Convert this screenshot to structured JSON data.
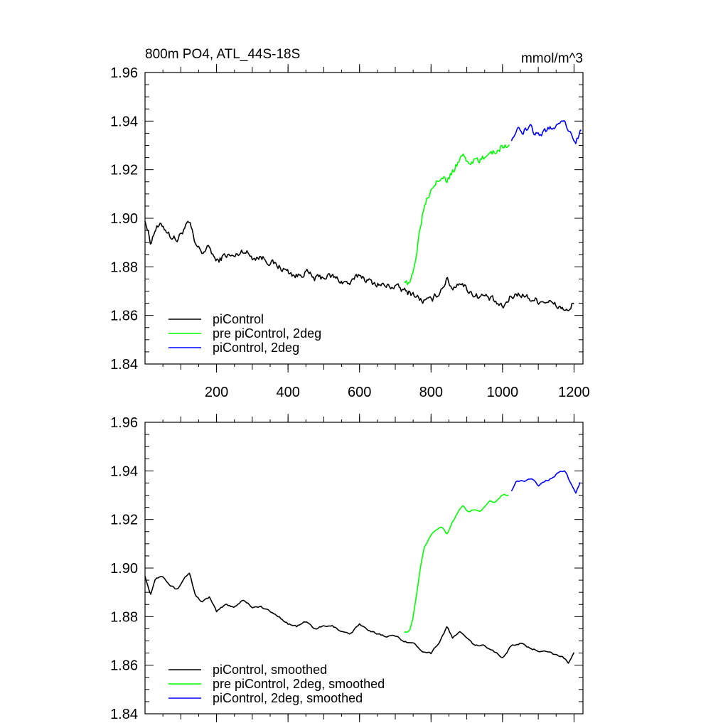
{
  "chart_data": [
    {
      "type": "line",
      "title": "800m PO4, ATL_44S-18S",
      "units": "mmol/m^3",
      "ylim": [
        1.84,
        1.96
      ],
      "yticks": [
        "1.84",
        "1.86",
        "1.88",
        "1.90",
        "1.92",
        "1.94",
        "1.96"
      ],
      "xlim": [
        0,
        1225
      ],
      "xticks": [
        "200",
        "400",
        "600",
        "800",
        "1000",
        "1200"
      ],
      "legend_position": "bottom-left",
      "series": [
        {
          "name": "piControl",
          "color": "#000000",
          "style": "noisy",
          "points": [
            [
              0,
              1.9
            ],
            [
              15,
              1.89
            ],
            [
              30,
              1.896
            ],
            [
              50,
              1.897
            ],
            [
              70,
              1.893
            ],
            [
              90,
              1.891
            ],
            [
              110,
              1.896
            ],
            [
              125,
              1.898
            ],
            [
              140,
              1.889
            ],
            [
              160,
              1.886
            ],
            [
              180,
              1.888
            ],
            [
              200,
              1.882
            ],
            [
              225,
              1.885
            ],
            [
              250,
              1.884
            ],
            [
              275,
              1.887
            ],
            [
              300,
              1.884
            ],
            [
              325,
              1.884
            ],
            [
              350,
              1.882
            ],
            [
              375,
              1.88
            ],
            [
              400,
              1.878
            ],
            [
              425,
              1.876
            ],
            [
              450,
              1.878
            ],
            [
              475,
              1.875
            ],
            [
              500,
              1.876
            ],
            [
              525,
              1.876
            ],
            [
              550,
              1.874
            ],
            [
              575,
              1.873
            ],
            [
              600,
              1.877
            ],
            [
              625,
              1.874
            ],
            [
              650,
              1.873
            ],
            [
              675,
              1.872
            ],
            [
              700,
              1.872
            ],
            [
              725,
              1.87
            ],
            [
              750,
              1.869
            ],
            [
              775,
              1.866
            ],
            [
              800,
              1.866
            ],
            [
              825,
              1.87
            ],
            [
              845,
              1.875
            ],
            [
              860,
              1.871
            ],
            [
              880,
              1.874
            ],
            [
              900,
              1.871
            ],
            [
              925,
              1.868
            ],
            [
              950,
              1.868
            ],
            [
              975,
              1.866
            ],
            [
              1000,
              1.863
            ],
            [
              1025,
              1.868
            ],
            [
              1050,
              1.869
            ],
            [
              1075,
              1.867
            ],
            [
              1100,
              1.866
            ],
            [
              1125,
              1.866
            ],
            [
              1150,
              1.864
            ],
            [
              1170,
              1.863
            ],
            [
              1185,
              1.861
            ],
            [
              1200,
              1.866
            ]
          ]
        },
        {
          "name": "pre piControl, 2deg",
          "color": "#00ff00",
          "style": "noisy",
          "points": [
            [
              725,
              1.875
            ],
            [
              740,
              1.872
            ],
            [
              750,
              1.878
            ],
            [
              760,
              1.887
            ],
            [
              770,
              1.897
            ],
            [
              780,
              1.905
            ],
            [
              790,
              1.909
            ],
            [
              800,
              1.912
            ],
            [
              815,
              1.916
            ],
            [
              830,
              1.918
            ],
            [
              845,
              1.915
            ],
            [
              860,
              1.919
            ],
            [
              875,
              1.923
            ],
            [
              890,
              1.926
            ],
            [
              905,
              1.923
            ],
            [
              920,
              1.924
            ],
            [
              935,
              1.923
            ],
            [
              950,
              1.925
            ],
            [
              965,
              1.928
            ],
            [
              980,
              1.927
            ],
            [
              1000,
              1.93
            ],
            [
              1020,
              1.93
            ]
          ]
        },
        {
          "name": "piControl, 2deg",
          "color": "#0000ff",
          "style": "noisy",
          "points": [
            [
              1025,
              1.933
            ],
            [
              1040,
              1.936
            ],
            [
              1060,
              1.936
            ],
            [
              1080,
              1.937
            ],
            [
              1100,
              1.934
            ],
            [
              1120,
              1.936
            ],
            [
              1140,
              1.937
            ],
            [
              1160,
              1.94
            ],
            [
              1175,
              1.94
            ],
            [
              1190,
              1.935
            ],
            [
              1205,
              1.931
            ],
            [
              1220,
              1.937
            ]
          ]
        }
      ]
    },
    {
      "type": "line",
      "ylim": [
        1.84,
        1.96
      ],
      "yticks": [
        "1.84",
        "1.86",
        "1.88",
        "1.90",
        "1.92",
        "1.94",
        "1.96"
      ],
      "xlim": [
        0,
        1225
      ],
      "legend_position": "bottom-left",
      "series": [
        {
          "name": "piControl, smoothed",
          "color": "#000000",
          "style": "smooth",
          "points": [
            [
              0,
              1.897
            ],
            [
              15,
              1.889
            ],
            [
              30,
              1.896
            ],
            [
              50,
              1.897
            ],
            [
              70,
              1.893
            ],
            [
              90,
              1.891
            ],
            [
              110,
              1.896
            ],
            [
              125,
              1.898
            ],
            [
              140,
              1.889
            ],
            [
              160,
              1.886
            ],
            [
              180,
              1.888
            ],
            [
              200,
              1.882
            ],
            [
              225,
              1.885
            ],
            [
              250,
              1.884
            ],
            [
              275,
              1.887
            ],
            [
              300,
              1.884
            ],
            [
              325,
              1.884
            ],
            [
              350,
              1.882
            ],
            [
              375,
              1.88
            ],
            [
              400,
              1.877
            ],
            [
              425,
              1.876
            ],
            [
              450,
              1.878
            ],
            [
              475,
              1.875
            ],
            [
              500,
              1.876
            ],
            [
              525,
              1.876
            ],
            [
              550,
              1.874
            ],
            [
              575,
              1.873
            ],
            [
              600,
              1.877
            ],
            [
              625,
              1.874
            ],
            [
              650,
              1.873
            ],
            [
              675,
              1.872
            ],
            [
              700,
              1.872
            ],
            [
              725,
              1.87
            ],
            [
              750,
              1.869
            ],
            [
              775,
              1.866
            ],
            [
              800,
              1.865
            ],
            [
              825,
              1.87
            ],
            [
              845,
              1.876
            ],
            [
              860,
              1.871
            ],
            [
              880,
              1.874
            ],
            [
              900,
              1.871
            ],
            [
              925,
              1.868
            ],
            [
              950,
              1.868
            ],
            [
              975,
              1.866
            ],
            [
              1000,
              1.863
            ],
            [
              1025,
              1.868
            ],
            [
              1050,
              1.869
            ],
            [
              1075,
              1.867
            ],
            [
              1100,
              1.866
            ],
            [
              1125,
              1.866
            ],
            [
              1150,
              1.864
            ],
            [
              1170,
              1.863
            ],
            [
              1185,
              1.861
            ],
            [
              1200,
              1.865
            ]
          ]
        },
        {
          "name": "pre piControl, 2deg, smoothed",
          "color": "#00ff00",
          "style": "smooth",
          "points": [
            [
              725,
              1.874
            ],
            [
              740,
              1.874
            ],
            [
              750,
              1.88
            ],
            [
              760,
              1.89
            ],
            [
              770,
              1.9
            ],
            [
              780,
              1.908
            ],
            [
              790,
              1.911
            ],
            [
              800,
              1.914
            ],
            [
              815,
              1.916
            ],
            [
              830,
              1.917
            ],
            [
              845,
              1.914
            ],
            [
              860,
              1.919
            ],
            [
              875,
              1.923
            ],
            [
              890,
              1.926
            ],
            [
              905,
              1.923
            ],
            [
              920,
              1.924
            ],
            [
              935,
              1.923
            ],
            [
              950,
              1.925
            ],
            [
              965,
              1.928
            ],
            [
              980,
              1.927
            ],
            [
              1000,
              1.93
            ],
            [
              1020,
              1.93
            ]
          ]
        },
        {
          "name": "piControl, 2deg, smoothed",
          "color": "#0000ff",
          "style": "smooth",
          "points": [
            [
              1025,
              1.932
            ],
            [
              1040,
              1.936
            ],
            [
              1060,
              1.936
            ],
            [
              1080,
              1.937
            ],
            [
              1100,
              1.934
            ],
            [
              1120,
              1.936
            ],
            [
              1140,
              1.937
            ],
            [
              1160,
              1.94
            ],
            [
              1175,
              1.94
            ],
            [
              1190,
              1.935
            ],
            [
              1205,
              1.931
            ],
            [
              1220,
              1.936
            ]
          ]
        }
      ]
    }
  ]
}
